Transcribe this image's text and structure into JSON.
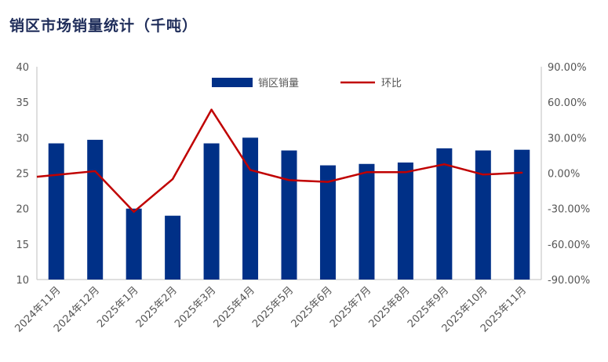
{
  "chart_data": {
    "type": "bar+line",
    "title": "销区市场销量统计（千吨）",
    "categories": [
      "2024年11月",
      "2024年12月",
      "2025年1月",
      "2025年2月",
      "2025年3月",
      "2025年4月",
      "2025年5月",
      "2025年6月",
      "2025年7月",
      "2025年8月",
      "2025年9月",
      "2025年10月",
      "2025年11月"
    ],
    "series": [
      {
        "name": "销区销量",
        "type": "bar",
        "axis": "left",
        "color": "#003087",
        "values": [
          29.2,
          29.7,
          20.0,
          19.0,
          29.2,
          30.0,
          28.2,
          26.1,
          26.3,
          26.5,
          28.5,
          28.2,
          28.3
        ]
      },
      {
        "name": "环比",
        "type": "line",
        "axis": "right",
        "color": "#c00000",
        "values": [
          -1.5,
          1.7,
          -32.7,
          -5.0,
          53.7,
          2.7,
          -5.9,
          -7.4,
          0.8,
          0.8,
          7.5,
          -1.2,
          0.4
        ]
      }
    ],
    "left_axis": {
      "min": 10,
      "max": 40,
      "step": 5,
      "ticks": [
        "10",
        "15",
        "20",
        "25",
        "30",
        "35",
        "40"
      ]
    },
    "right_axis": {
      "min": -90,
      "max": 90,
      "step": 30,
      "ticks": [
        "-90.00%",
        "-60.00%",
        "-30.00%",
        "0.00%",
        "30.00%",
        "60.00%",
        "90.00%"
      ]
    },
    "legend_position": "top-center",
    "grid": false
  }
}
